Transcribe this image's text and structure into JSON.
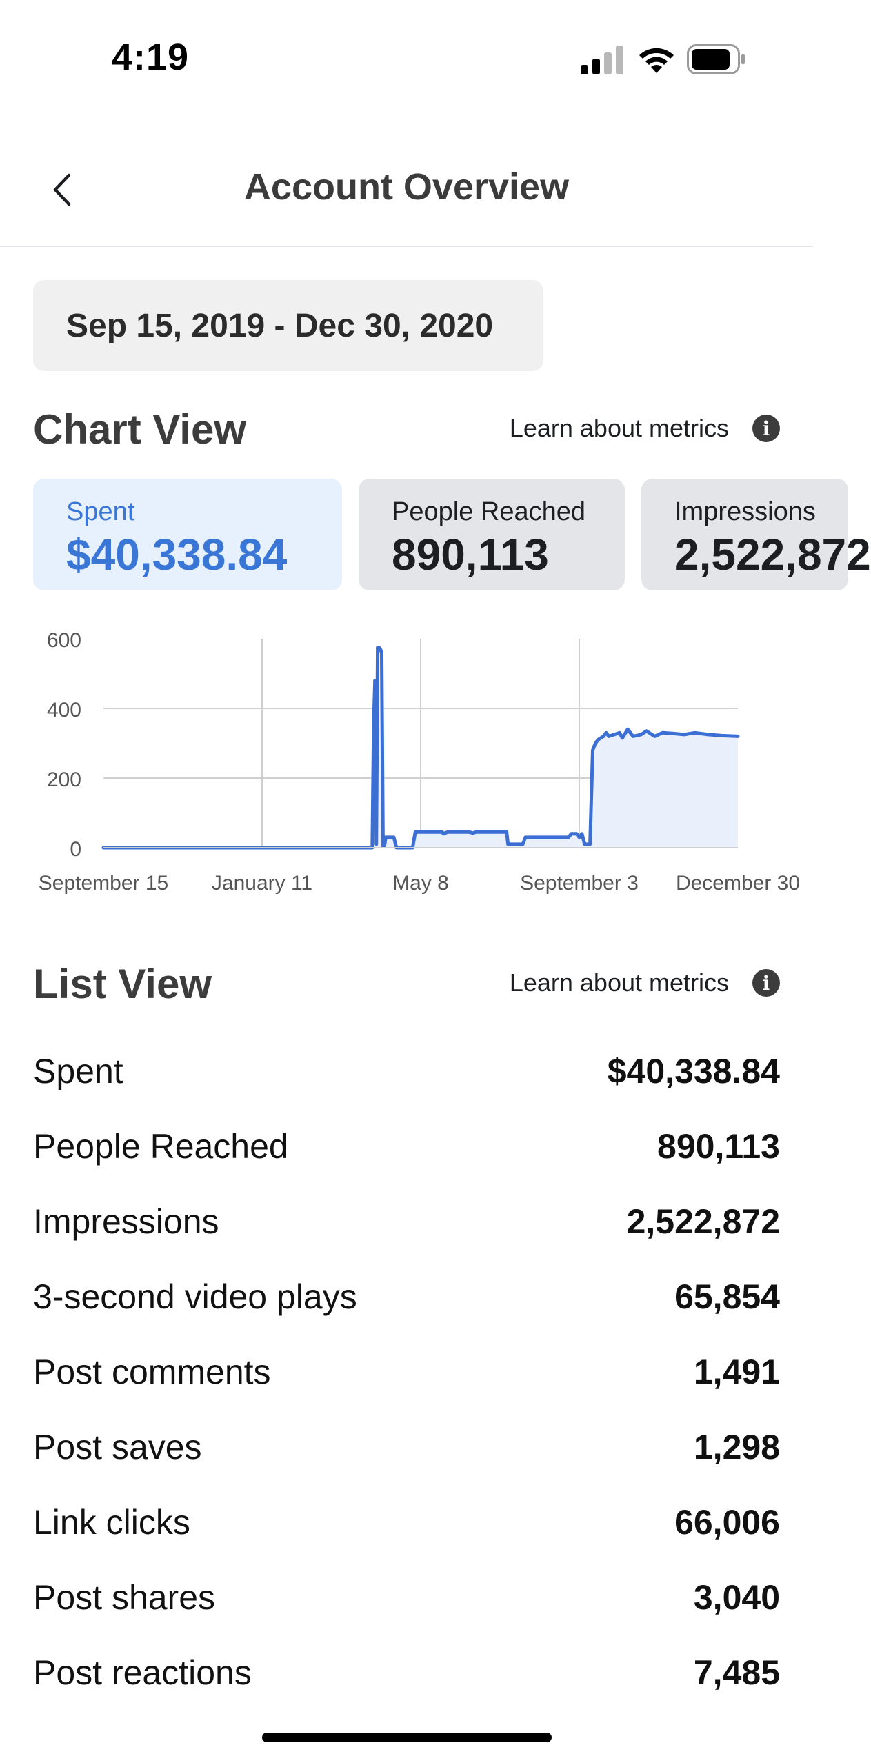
{
  "status_bar": {
    "time": "4:19"
  },
  "nav": {
    "title": "Account Overview"
  },
  "date_range": {
    "label": "Sep 15, 2019 - Dec 30, 2020"
  },
  "chart_view": {
    "title": "Chart View",
    "learn_link": "Learn about metrics",
    "cards": [
      {
        "label": "Spent",
        "value": "$40,338.84",
        "active": true
      },
      {
        "label": "People Reached",
        "value": "890,113",
        "active": false
      },
      {
        "label": "Impressions",
        "value": "2,522,872",
        "active": false
      }
    ]
  },
  "chart_data": {
    "type": "area",
    "x_tick_labels": [
      "September 15",
      "January 11",
      "May 8",
      "September 3",
      "December 30"
    ],
    "y_tick_labels": [
      "600",
      "400",
      "200",
      "0"
    ],
    "ylim": [
      0,
      600
    ],
    "xlim_days": [
      0,
      472
    ],
    "grid": true,
    "color": "#3b6fd4",
    "fill_color": "#e9effb",
    "series": [
      {
        "x_days": [
          0,
          200,
          201,
          202,
          203,
          204,
          205,
          206,
          207,
          208,
          209,
          210,
          212,
          216,
          218,
          230,
          232,
          252,
          253,
          256,
          257,
          270,
          272,
          275,
          277,
          300,
          301,
          312,
          314,
          346,
          348,
          352,
          354,
          356,
          358,
          362,
          364,
          366,
          368,
          372,
          374,
          376,
          380,
          384,
          386,
          390,
          394,
          400,
          404,
          410,
          416,
          424,
          432,
          440,
          450,
          460,
          472
        ],
        "values": [
          0,
          0,
          350,
          480,
          10,
          575,
          575,
          570,
          560,
          5,
          5,
          30,
          30,
          30,
          0,
          0,
          45,
          45,
          40,
          45,
          45,
          45,
          45,
          42,
          45,
          45,
          10,
          10,
          30,
          30,
          40,
          40,
          30,
          40,
          10,
          10,
          280,
          300,
          310,
          320,
          330,
          320,
          325,
          330,
          315,
          340,
          320,
          325,
          335,
          320,
          330,
          328,
          325,
          330,
          325,
          322,
          320
        ]
      }
    ]
  },
  "list_view": {
    "title": "List View",
    "learn_link": "Learn about metrics",
    "rows": [
      {
        "label": "Spent",
        "value": "$40,338.84"
      },
      {
        "label": "People Reached",
        "value": "890,113"
      },
      {
        "label": "Impressions",
        "value": "2,522,872"
      },
      {
        "label": "3-second video plays",
        "value": "65,854"
      },
      {
        "label": "Post comments",
        "value": "1,491"
      },
      {
        "label": "Post saves",
        "value": "1,298"
      },
      {
        "label": "Link clicks",
        "value": "66,006"
      },
      {
        "label": "Post shares",
        "value": "3,040"
      },
      {
        "label": "Post reactions",
        "value": "7,485"
      }
    ]
  }
}
